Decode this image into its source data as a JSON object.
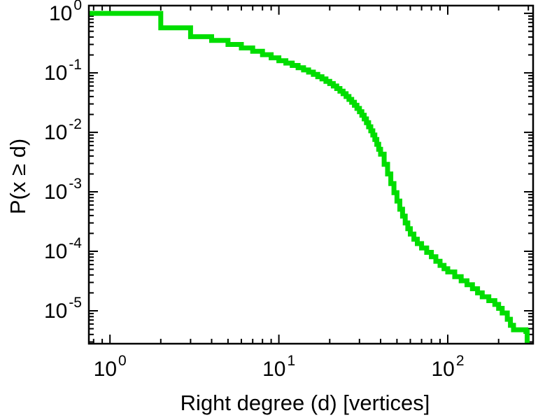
{
  "chart_data": {
    "type": "line",
    "subtype": "ccdf-steps",
    "title": "",
    "xlabel": "Right degree (d) [vertices]",
    "ylabel": "P(x ≥ d)",
    "xscale": "log",
    "yscale": "log",
    "xlim": [
      0.75,
      320
    ],
    "ylim": [
      2.8e-06,
      1.35
    ],
    "grid": false,
    "legend": "none",
    "axis_color": "#000000",
    "background_color": "#ffffff",
    "line_color": "#00dd00",
    "line_width": 7,
    "x_ticks": [
      {
        "value": 1,
        "label_base": "10",
        "label_exp": "0"
      },
      {
        "value": 10,
        "label_base": "10",
        "label_exp": "1"
      },
      {
        "value": 100,
        "label_base": "10",
        "label_exp": "2"
      }
    ],
    "y_ticks": [
      {
        "value": 1,
        "label_base": "10",
        "label_exp": "0"
      },
      {
        "value": 0.1,
        "label_base": "10",
        "label_exp": "-1"
      },
      {
        "value": 0.01,
        "label_base": "10",
        "label_exp": "-2"
      },
      {
        "value": 0.001,
        "label_base": "10",
        "label_exp": "-3"
      },
      {
        "value": 0.0001,
        "label_base": "10",
        "label_exp": "-4"
      },
      {
        "value": 1e-05,
        "label_base": "10",
        "label_exp": "-5"
      }
    ],
    "points": [
      [
        1,
        1.0
      ],
      [
        2,
        0.57
      ],
      [
        3,
        0.405
      ],
      [
        4,
        0.35
      ],
      [
        5,
        0.3
      ],
      [
        6,
        0.262
      ],
      [
        7,
        0.23
      ],
      [
        8,
        0.202
      ],
      [
        9,
        0.179
      ],
      [
        10,
        0.16
      ],
      [
        11,
        0.146
      ],
      [
        12,
        0.133
      ],
      [
        13,
        0.122
      ],
      [
        14,
        0.112
      ],
      [
        15,
        0.103
      ],
      [
        16,
        0.094
      ],
      [
        17,
        0.086
      ],
      [
        18,
        0.079
      ],
      [
        19,
        0.072
      ],
      [
        20,
        0.066
      ],
      [
        21,
        0.06
      ],
      [
        22,
        0.0545
      ],
      [
        23,
        0.0493
      ],
      [
        24,
        0.0445
      ],
      [
        25,
        0.04
      ],
      [
        26,
        0.0358
      ],
      [
        27,
        0.032
      ],
      [
        28,
        0.0285
      ],
      [
        29,
        0.0252
      ],
      [
        30,
        0.0222
      ],
      [
        31,
        0.0194
      ],
      [
        32,
        0.0168
      ],
      [
        33,
        0.0145
      ],
      [
        34,
        0.0124
      ],
      [
        35,
        0.0106
      ],
      [
        36,
        0.009
      ],
      [
        37,
        0.0076
      ],
      [
        38,
        0.0063
      ],
      [
        39,
        0.0052
      ],
      [
        40,
        0.0043
      ],
      [
        42,
        0.0029
      ],
      [
        44,
        0.002
      ],
      [
        46,
        0.00138
      ],
      [
        48,
        0.00097
      ],
      [
        50,
        0.0007
      ],
      [
        52,
        0.00051
      ],
      [
        54,
        0.00039
      ],
      [
        56,
        0.0003
      ],
      [
        58,
        0.00024
      ],
      [
        60,
        0.000195
      ],
      [
        63,
        0.00016
      ],
      [
        66,
        0.000135
      ],
      [
        70,
        0.000114
      ],
      [
        75,
        9.6e-05
      ],
      [
        80,
        8.1e-05
      ],
      [
        85,
        6.8e-05
      ],
      [
        90,
        5.8e-05
      ],
      [
        95,
        5.1e-05
      ],
      [
        100,
        4.5e-05
      ],
      [
        110,
        3.75e-05
      ],
      [
        120,
        3.2e-05
      ],
      [
        130,
        2.75e-05
      ],
      [
        140,
        2.35e-05
      ],
      [
        150,
        2e-05
      ],
      [
        160,
        1.72e-05
      ],
      [
        175,
        1.48e-05
      ],
      [
        190,
        1.28e-05
      ],
      [
        200,
        1.1e-05
      ],
      [
        210,
        9.2e-06
      ],
      [
        225,
        7.2e-06
      ],
      [
        235,
        5.7e-06
      ],
      [
        245,
        4.8e-06
      ],
      [
        290,
        4.5e-06
      ],
      [
        295,
        2e-06
      ]
    ]
  }
}
